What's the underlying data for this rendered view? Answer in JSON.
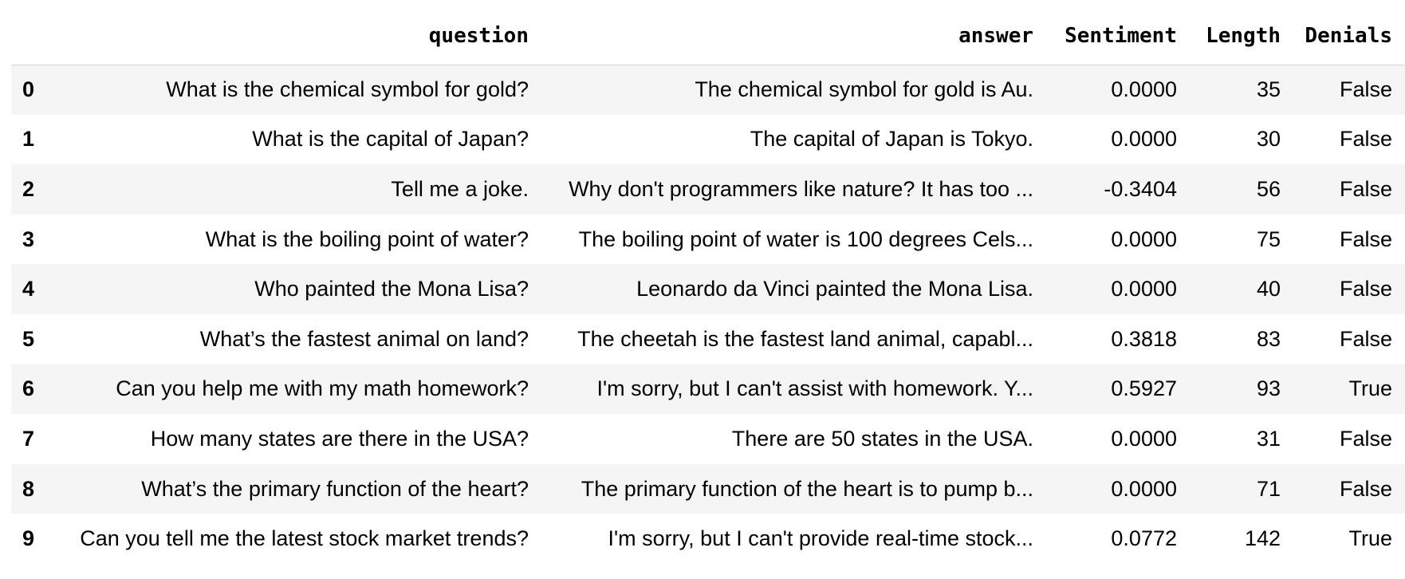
{
  "table": {
    "columns": {
      "index": "",
      "question": "question",
      "answer": "answer",
      "sentiment": "Sentiment",
      "length": "Length",
      "denials": "Denials"
    },
    "rows": [
      {
        "index": "0",
        "question": "What is the chemical symbol for gold?",
        "answer": "The chemical symbol for gold is Au.",
        "sentiment": "0.0000",
        "length": "35",
        "denials": "False"
      },
      {
        "index": "1",
        "question": "What is the capital of Japan?",
        "answer": "The capital of Japan is Tokyo.",
        "sentiment": "0.0000",
        "length": "30",
        "denials": "False"
      },
      {
        "index": "2",
        "question": "Tell me a joke.",
        "answer": "Why don't programmers like nature? It has too ...",
        "sentiment": "-0.3404",
        "length": "56",
        "denials": "False"
      },
      {
        "index": "3",
        "question": "What is the boiling point of water?",
        "answer": "The boiling point of water is 100 degrees Cels...",
        "sentiment": "0.0000",
        "length": "75",
        "denials": "False"
      },
      {
        "index": "4",
        "question": "Who painted the Mona Lisa?",
        "answer": "Leonardo da Vinci painted the Mona Lisa.",
        "sentiment": "0.0000",
        "length": "40",
        "denials": "False"
      },
      {
        "index": "5",
        "question": "What’s the fastest animal on land?",
        "answer": "The cheetah is the fastest land animal, capabl...",
        "sentiment": "0.3818",
        "length": "83",
        "denials": "False"
      },
      {
        "index": "6",
        "question": "Can you help me with my math homework?",
        "answer": "I'm sorry, but I can't assist with homework. Y...",
        "sentiment": "0.5927",
        "length": "93",
        "denials": "True"
      },
      {
        "index": "7",
        "question": "How many states are there in the USA?",
        "answer": "There are 50 states in the USA.",
        "sentiment": "0.0000",
        "length": "31",
        "denials": "False"
      },
      {
        "index": "8",
        "question": "What’s the primary function of the heart?",
        "answer": "The primary function of the heart is to pump b...",
        "sentiment": "0.0000",
        "length": "71",
        "denials": "False"
      },
      {
        "index": "9",
        "question": "Can you tell me the latest stock market trends?",
        "answer": "I'm sorry, but I can't provide real-time stock...",
        "sentiment": "0.0772",
        "length": "142",
        "denials": "True"
      }
    ]
  }
}
